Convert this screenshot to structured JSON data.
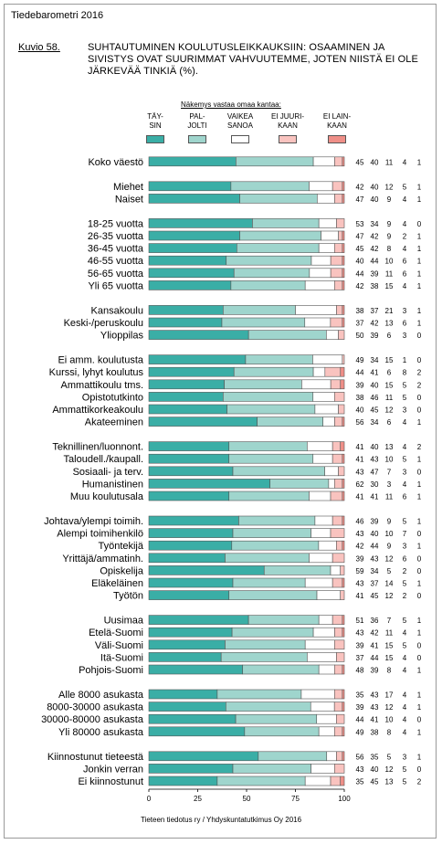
{
  "header": {
    "report": "Tiedebarometri 2016",
    "figure_no": "Kuvio 58.",
    "title": "SUHTAUTUMINEN KOULUTUSLEIKKAUKSIIN: OSAAMINEN JA SIVISTYS OVAT SUURIMMAT VAHVUUTEMME, JOTEN NIISTÄ EI OLE JÄRKEVÄÄ TINKIÄ (%)."
  },
  "legend": {
    "title": "Näkemys vastaa omaa kantaa:",
    "items": [
      {
        "label": "TÄY-\nSIN",
        "color": "#3aaea6"
      },
      {
        "label": "PAL-\nJOLTI",
        "color": "#9fd5cd"
      },
      {
        "label": "VAIKEA\nSANOA",
        "color": "#ffffff"
      },
      {
        "label": "EI JUURI-\nKAAN",
        "color": "#f9c3bf"
      },
      {
        "label": "EI LAIN-\nKAAN",
        "color": "#ef8f88"
      }
    ]
  },
  "source": "Tieteen tiedotus ry / Yhdyskuntatutkimus Oy 2016",
  "chart_data": {
    "type": "bar",
    "stacked": true,
    "orientation": "horizontal",
    "xlim": [
      0,
      100
    ],
    "xticks": [
      "0",
      "25",
      "50",
      "75",
      "100"
    ],
    "series_names": [
      "TÄYSIN",
      "PALJOLTI",
      "VAIKEA SANOA",
      "EI JUURIKAAN",
      "EI LAINKAAN"
    ],
    "groups": [
      {
        "rows": [
          {
            "label": "Koko väestö",
            "values": [
              45,
              40,
              11,
              4,
              1
            ]
          }
        ]
      },
      {
        "rows": [
          {
            "label": "Miehet",
            "values": [
              42,
              40,
              12,
              5,
              1
            ]
          },
          {
            "label": "Naiset",
            "values": [
              47,
              40,
              9,
              4,
              1
            ]
          }
        ]
      },
      {
        "rows": [
          {
            "label": "18-25 vuotta",
            "values": [
              53,
              34,
              9,
              4,
              0
            ]
          },
          {
            "label": "26-35 vuotta",
            "values": [
              47,
              42,
              9,
              2,
              1
            ]
          },
          {
            "label": "36-45 vuotta",
            "values": [
              45,
              42,
              8,
              4,
              1
            ]
          },
          {
            "label": "46-55 vuotta",
            "values": [
              40,
              44,
              10,
              6,
              1
            ]
          },
          {
            "label": "56-65 vuotta",
            "values": [
              44,
              39,
              11,
              6,
              1
            ]
          },
          {
            "label": "Yli 65 vuotta",
            "values": [
              42,
              38,
              15,
              4,
              1
            ]
          }
        ]
      },
      {
        "rows": [
          {
            "label": "Kansakoulu",
            "values": [
              38,
              37,
              21,
              3,
              1
            ]
          },
          {
            "label": "Keski-/peruskoulu",
            "values": [
              37,
              42,
              13,
              6,
              1
            ]
          },
          {
            "label": "Ylioppilas",
            "values": [
              50,
              39,
              6,
              3,
              0
            ]
          }
        ]
      },
      {
        "rows": [
          {
            "label": "Ei amm. koulutusta",
            "values": [
              49,
              34,
              15,
              1,
              0
            ]
          },
          {
            "label": "Kurssi, lyhyt koulutus",
            "values": [
              44,
              41,
              6,
              8,
              2
            ]
          },
          {
            "label": "Ammattikoulu tms.",
            "values": [
              39,
              40,
              15,
              5,
              2
            ]
          },
          {
            "label": "Opistotutkinto",
            "values": [
              38,
              46,
              11,
              5,
              0
            ]
          },
          {
            "label": "Ammattikorkeakoulu",
            "values": [
              40,
              45,
              12,
              3,
              0
            ]
          },
          {
            "label": "Akateeminen",
            "values": [
              56,
              34,
              6,
              4,
              1
            ]
          }
        ]
      },
      {
        "rows": [
          {
            "label": "Teknillinen/luonnont.",
            "values": [
              41,
              40,
              13,
              4,
              2
            ]
          },
          {
            "label": "Taloudell./kaupall.",
            "values": [
              41,
              43,
              10,
              5,
              1
            ]
          },
          {
            "label": "Sosiaali- ja terv.",
            "values": [
              43,
              47,
              7,
              3,
              0
            ]
          },
          {
            "label": "Humanistinen",
            "values": [
              62,
              30,
              3,
              4,
              1
            ]
          },
          {
            "label": "Muu koulutusala",
            "values": [
              41,
              41,
              11,
              6,
              1
            ]
          }
        ]
      },
      {
        "rows": [
          {
            "label": "Johtava/ylempi toimih.",
            "values": [
              46,
              39,
              9,
              5,
              1
            ]
          },
          {
            "label": "Alempi toimihenkilö",
            "values": [
              43,
              40,
              10,
              7,
              0
            ]
          },
          {
            "label": "Työntekijä",
            "values": [
              42,
              44,
              9,
              3,
              1
            ]
          },
          {
            "label": "Yrittäjä/ammatinh.",
            "values": [
              39,
              43,
              12,
              6,
              0
            ]
          },
          {
            "label": "Opiskelija",
            "values": [
              59,
              34,
              5,
              2,
              0
            ]
          },
          {
            "label": "Eläkeläinen",
            "values": [
              43,
              37,
              14,
              5,
              1
            ]
          },
          {
            "label": "Työtön",
            "values": [
              41,
              45,
              12,
              2,
              0
            ]
          }
        ]
      },
      {
        "rows": [
          {
            "label": "Uusimaa",
            "values": [
              51,
              36,
              7,
              5,
              1
            ]
          },
          {
            "label": "Etelä-Suomi",
            "values": [
              43,
              42,
              11,
              4,
              1
            ]
          },
          {
            "label": "Väli-Suomi",
            "values": [
              39,
              41,
              15,
              5,
              0
            ]
          },
          {
            "label": "Itä-Suomi",
            "values": [
              37,
              44,
              15,
              4,
              0
            ]
          },
          {
            "label": "Pohjois-Suomi",
            "values": [
              48,
              39,
              8,
              4,
              1
            ]
          }
        ]
      },
      {
        "rows": [
          {
            "label": "Alle 8000 asukasta",
            "values": [
              35,
              43,
              17,
              4,
              1
            ]
          },
          {
            "label": "8000-30000 asukasta",
            "values": [
              39,
              43,
              12,
              4,
              1
            ]
          },
          {
            "label": "30000-80000 asukasta",
            "values": [
              44,
              41,
              10,
              4,
              0
            ]
          },
          {
            "label": "Yli 80000 asukasta",
            "values": [
              49,
              38,
              8,
              4,
              1
            ]
          }
        ]
      },
      {
        "rows": [
          {
            "label": "Kiinnostunut tieteestä",
            "values": [
              56,
              35,
              5,
              3,
              1
            ]
          },
          {
            "label": "Jonkin verran",
            "values": [
              43,
              40,
              12,
              5,
              0
            ]
          },
          {
            "label": "Ei kiinnostunut",
            "values": [
              35,
              45,
              13,
              5,
              2
            ]
          }
        ]
      }
    ]
  }
}
